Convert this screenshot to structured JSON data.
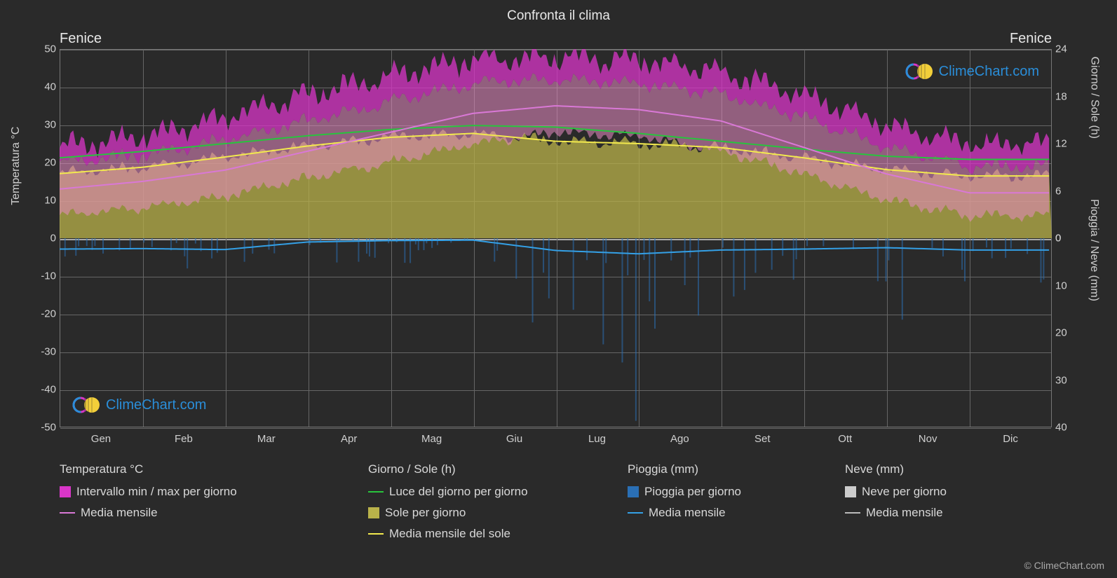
{
  "title": "Confronta il clima",
  "city_left": "Fenice",
  "city_right": "Fenice",
  "watermark_text": "ClimeChart.com",
  "watermark_color": "#2a8ed9",
  "copyright": "© ClimeChart.com",
  "background_color": "#2a2a2a",
  "grid_color": "#666666",
  "text_color": "#d0d0d0",
  "axis_left": {
    "label": "Temperatura °C",
    "min": -50,
    "max": 50,
    "ticks": [
      -50,
      -40,
      -30,
      -20,
      -10,
      0,
      10,
      20,
      30,
      40,
      50
    ]
  },
  "axis_right_upper": {
    "label": "Giorno / Sole (h)",
    "min": 0,
    "max": 24,
    "ticks": [
      0,
      6,
      12,
      18,
      24
    ]
  },
  "axis_right_lower": {
    "label": "Pioggia / Neve (mm)",
    "min": 0,
    "max": 40,
    "ticks": [
      0,
      10,
      20,
      30,
      40
    ]
  },
  "months": [
    "Gen",
    "Feb",
    "Mar",
    "Apr",
    "Mag",
    "Giu",
    "Lug",
    "Ago",
    "Set",
    "Ott",
    "Nov",
    "Dic"
  ],
  "series": {
    "temp_range": {
      "type": "area_band",
      "color": "#d936c8",
      "color_light": "#e88bc3",
      "opacity": 0.75,
      "min": [
        6,
        8,
        11,
        16,
        20,
        25,
        28,
        27,
        23,
        17,
        10,
        6
      ],
      "max": [
        20,
        22,
        26,
        31,
        36,
        41,
        42,
        41,
        38,
        32,
        24,
        19
      ],
      "spike_max": [
        24,
        27,
        32,
        38,
        43,
        47,
        48,
        47,
        44,
        38,
        30,
        25
      ]
    },
    "temp_mean": {
      "type": "line",
      "color": "#d978d6",
      "width": 2,
      "values": [
        13,
        15,
        18,
        23,
        28,
        33,
        35,
        34,
        31,
        24,
        17,
        12
      ]
    },
    "daylight": {
      "type": "line",
      "color": "#28c43d",
      "width": 2,
      "values_hours": [
        10.2,
        11.0,
        12.0,
        13.0,
        13.8,
        14.3,
        14.1,
        13.3,
        12.3,
        11.3,
        10.4,
        10.0
      ]
    },
    "sun_area": {
      "type": "area",
      "color": "#b9b24a",
      "opacity": 0.75,
      "values_hours": [
        8.2,
        9.0,
        10.3,
        11.7,
        12.8,
        13.3,
        12.3,
        12.0,
        11.5,
        10.2,
        8.7,
        7.9
      ]
    },
    "sun_mean": {
      "type": "line",
      "color": "#f2e94e",
      "width": 2,
      "values_hours": [
        8.2,
        9.0,
        10.3,
        11.7,
        12.8,
        13.3,
        12.3,
        12.0,
        11.5,
        10.2,
        8.7,
        7.9
      ]
    },
    "rain_bars": {
      "type": "bars_down",
      "color": "#2a6fb5",
      "opacity": 0.55,
      "values_mm_sample": [
        2,
        1,
        3,
        1,
        2,
        0,
        8,
        14,
        6,
        4,
        5,
        3
      ]
    },
    "rain_mean": {
      "type": "line",
      "color": "#34a0e6",
      "width": 2,
      "values_mm": [
        2.3,
        2.2,
        2.4,
        0.8,
        0.5,
        0.4,
        2.6,
        3.3,
        2.5,
        2.3,
        2.0,
        2.5
      ]
    },
    "snow_bars": {
      "type": "bars_down",
      "color": "#cccccc",
      "values_mm": [
        0,
        0,
        0,
        0,
        0,
        0,
        0,
        0,
        0,
        0,
        0,
        0
      ]
    },
    "snow_mean": {
      "type": "line",
      "color": "#bbbbbb",
      "width": 2,
      "values_mm": [
        0,
        0,
        0,
        0,
        0,
        0,
        0,
        0,
        0,
        0,
        0,
        0
      ]
    }
  },
  "legend": {
    "temperatura": {
      "header": "Temperatura °C",
      "items": [
        {
          "swatch": "box",
          "color": "#d936c8",
          "label": "Intervallo min / max per giorno"
        },
        {
          "swatch": "line",
          "color": "#d978d6",
          "label": "Media mensile"
        }
      ]
    },
    "giorno_sole": {
      "header": "Giorno / Sole (h)",
      "items": [
        {
          "swatch": "line",
          "color": "#28c43d",
          "label": "Luce del giorno per giorno"
        },
        {
          "swatch": "box",
          "color": "#b9b24a",
          "label": "Sole per giorno"
        },
        {
          "swatch": "line",
          "color": "#f2e94e",
          "label": "Media mensile del sole"
        }
      ]
    },
    "pioggia": {
      "header": "Pioggia (mm)",
      "items": [
        {
          "swatch": "box",
          "color": "#2a6fb5",
          "label": "Pioggia per giorno"
        },
        {
          "swatch": "line",
          "color": "#34a0e6",
          "label": "Media mensile"
        }
      ]
    },
    "neve": {
      "header": "Neve (mm)",
      "items": [
        {
          "swatch": "box",
          "color": "#cccccc",
          "label": "Neve per giorno"
        },
        {
          "swatch": "line",
          "color": "#bbbbbb",
          "label": "Media mensile"
        }
      ]
    }
  }
}
